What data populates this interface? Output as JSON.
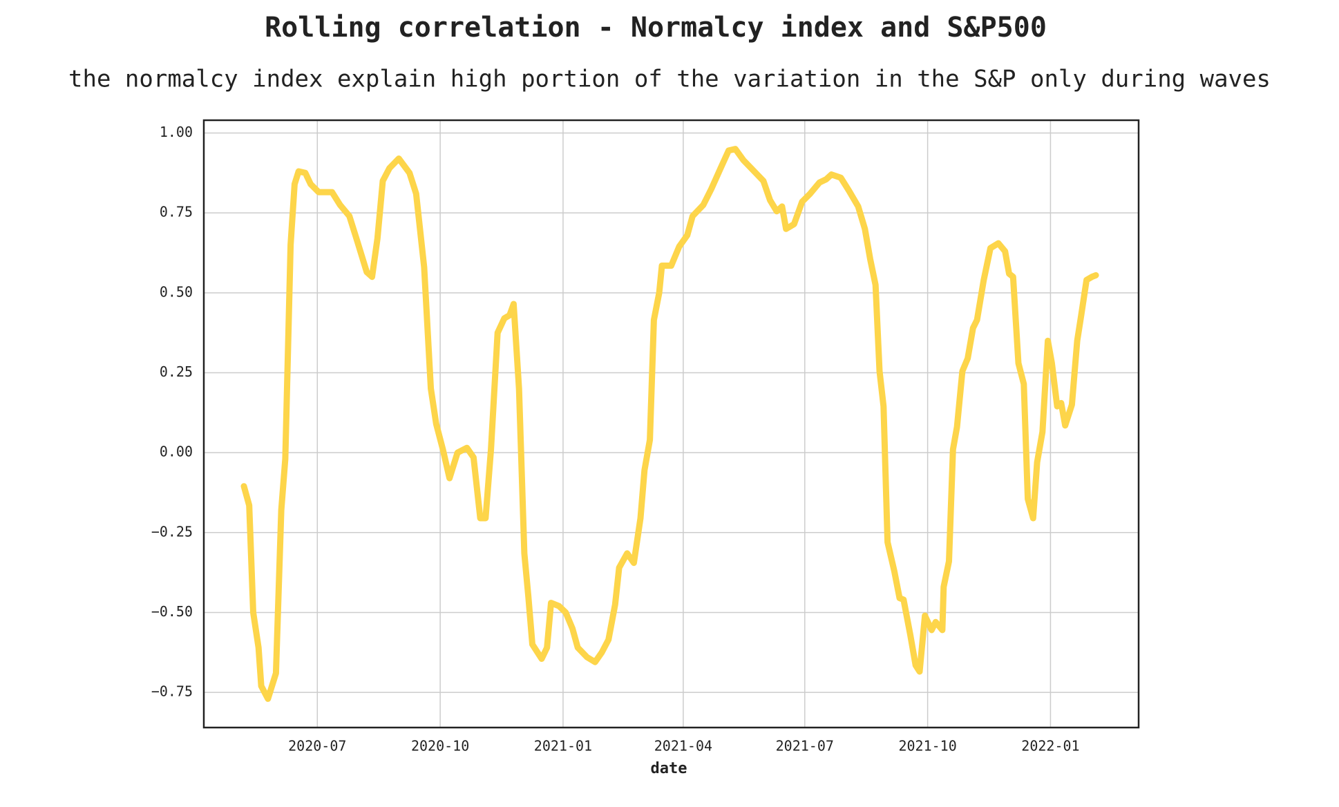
{
  "chart_data": {
    "type": "line",
    "title": "Rolling correlation - Normalcy index and S&P500",
    "subtitle": "the normalcy index explain high portion of the variation in the S&P only during waves",
    "xlabel": "date",
    "color": "#fdd54a",
    "grid": true,
    "x": [
      "2020-05-07",
      "2020-05-11",
      "2020-05-14",
      "2020-05-18",
      "2020-05-20",
      "2020-05-25",
      "2020-05-31",
      "2020-06-04",
      "2020-06-07",
      "2020-06-11",
      "2020-06-14",
      "2020-06-17",
      "2020-06-22",
      "2020-06-26",
      "2020-07-02",
      "2020-07-12",
      "2020-07-18",
      "2020-07-25",
      "2020-07-31",
      "2020-08-07",
      "2020-08-11",
      "2020-08-15",
      "2020-08-19",
      "2020-08-24",
      "2020-08-31",
      "2020-09-08",
      "2020-09-13",
      "2020-09-19",
      "2020-09-24",
      "2020-09-28",
      "2020-10-03",
      "2020-10-08",
      "2020-10-14",
      "2020-10-21",
      "2020-10-26",
      "2020-10-31",
      "2020-11-04",
      "2020-11-08",
      "2020-11-13",
      "2020-11-18",
      "2020-11-22",
      "2020-11-25",
      "2020-11-29",
      "2020-12-03",
      "2020-12-06",
      "2020-12-09",
      "2020-12-16",
      "2020-12-20",
      "2020-12-23",
      "2020-12-29",
      "2021-01-03",
      "2021-01-08",
      "2021-01-12",
      "2021-01-19",
      "2021-01-25",
      "2021-01-30",
      "2021-02-04",
      "2021-02-09",
      "2021-02-12",
      "2021-02-18",
      "2021-02-23",
      "2021-02-28",
      "2021-03-03",
      "2021-03-07",
      "2021-03-10",
      "2021-03-14",
      "2021-03-16",
      "2021-03-23",
      "2021-03-29",
      "2021-04-04",
      "2021-04-08",
      "2021-04-16",
      "2021-04-22",
      "2021-04-29",
      "2021-05-05",
      "2021-05-10",
      "2021-05-16",
      "2021-05-23",
      "2021-05-31",
      "2021-06-05",
      "2021-06-10",
      "2021-06-14",
      "2021-06-17",
      "2021-06-23",
      "2021-06-29",
      "2021-07-05",
      "2021-07-12",
      "2021-07-17",
      "2021-07-21",
      "2021-07-28",
      "2021-08-03",
      "2021-08-10",
      "2021-08-15",
      "2021-08-19",
      "2021-08-23",
      "2021-08-26",
      "2021-08-29",
      "2021-09-01",
      "2021-09-06",
      "2021-09-10",
      "2021-09-13",
      "2021-09-18",
      "2021-09-22",
      "2021-09-25",
      "2021-09-29",
      "2021-10-04",
      "2021-10-07",
      "2021-10-12",
      "2021-10-13",
      "2021-10-17",
      "2021-10-20",
      "2021-10-23",
      "2021-10-27",
      "2021-10-31",
      "2021-11-04",
      "2021-11-07",
      "2021-11-12",
      "2021-11-17",
      "2021-11-23",
      "2021-11-28",
      "2021-12-01",
      "2021-12-04",
      "2021-12-08",
      "2021-12-12",
      "2021-12-15",
      "2021-12-19",
      "2021-12-22",
      "2021-12-26",
      "2021-12-30",
      "2022-01-02",
      "2022-01-06",
      "2022-01-09",
      "2022-01-12",
      "2022-01-17",
      "2022-01-21",
      "2022-01-24",
      "2022-01-28",
      "2022-02-01",
      "2022-02-04"
    ],
    "values": [
      -0.105,
      -0.165,
      -0.5,
      -0.61,
      -0.73,
      -0.77,
      -0.69,
      -0.18,
      -0.02,
      0.65,
      0.84,
      0.88,
      0.875,
      0.84,
      0.815,
      0.815,
      0.775,
      0.74,
      0.66,
      0.565,
      0.55,
      0.67,
      0.85,
      0.89,
      0.92,
      0.875,
      0.81,
      0.58,
      0.2,
      0.09,
      0.01,
      -0.08,
      0.0,
      0.015,
      -0.015,
      -0.205,
      -0.205,
      0.01,
      0.375,
      0.42,
      0.43,
      0.465,
      0.2,
      -0.315,
      -0.45,
      -0.6,
      -0.645,
      -0.61,
      -0.47,
      -0.48,
      -0.5,
      -0.55,
      -0.61,
      -0.64,
      -0.655,
      -0.625,
      -0.585,
      -0.475,
      -0.36,
      -0.315,
      -0.345,
      -0.205,
      -0.055,
      0.04,
      0.415,
      0.5,
      0.585,
      0.585,
      0.645,
      0.68,
      0.74,
      0.775,
      0.825,
      0.89,
      0.945,
      0.95,
      0.915,
      0.885,
      0.85,
      0.79,
      0.755,
      0.77,
      0.7,
      0.715,
      0.785,
      0.81,
      0.845,
      0.855,
      0.87,
      0.86,
      0.82,
      0.77,
      0.7,
      0.605,
      0.525,
      0.255,
      0.145,
      -0.28,
      -0.37,
      -0.455,
      -0.46,
      -0.57,
      -0.665,
      -0.685,
      -0.51,
      -0.555,
      -0.53,
      -0.555,
      -0.42,
      -0.34,
      0.01,
      0.08,
      0.255,
      0.295,
      0.39,
      0.415,
      0.54,
      0.64,
      0.655,
      0.63,
      0.56,
      0.55,
      0.28,
      0.215,
      -0.145,
      -0.205,
      -0.03,
      0.065,
      0.35,
      0.28,
      0.145,
      0.155,
      0.085,
      0.15,
      0.35,
      0.43,
      0.54,
      0.55,
      0.555
    ],
    "xlim": [
      "2020-04-07",
      "2022-03-08"
    ],
    "xticks": [
      "2020-07",
      "2020-10",
      "2021-01",
      "2021-04",
      "2021-07",
      "2021-10",
      "2022-01"
    ],
    "ylim": [
      -0.86,
      1.04
    ],
    "yticks": [
      {
        "value": -0.75,
        "label": "−0.75"
      },
      {
        "value": -0.5,
        "label": "−0.50"
      },
      {
        "value": -0.25,
        "label": "−0.25"
      },
      {
        "value": 0,
        "label": "0.00"
      },
      0.25,
      {
        "value": 0.5,
        "label": "0.50"
      },
      {
        "value": 0.75,
        "label": "0.75"
      },
      {
        "value": 1,
        "label": "1.00"
      }
    ]
  }
}
